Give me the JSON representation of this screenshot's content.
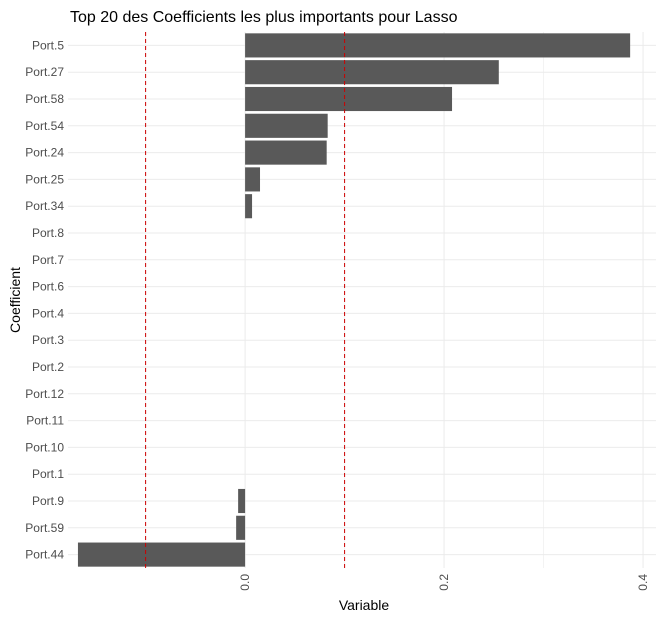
{
  "chart_data": {
    "type": "bar",
    "orientation": "horizontal",
    "title": "Top 20 des Coefficients les plus importants pour Lasso",
    "xlabel": "Variable",
    "ylabel": "Coefficient",
    "categories": [
      "Port.5",
      "Port.27",
      "Port.58",
      "Port.54",
      "Port.24",
      "Port.25",
      "Port.34",
      "Port.8",
      "Port.7",
      "Port.6",
      "Port.4",
      "Port.3",
      "Port.2",
      "Port.12",
      "Port.11",
      "Port.10",
      "Port.1",
      "Port.9",
      "Port.59",
      "Port.44"
    ],
    "values": [
      0.387,
      0.255,
      0.208,
      0.083,
      0.082,
      0.015,
      0.007,
      0,
      0,
      0,
      0,
      0,
      0,
      0,
      0,
      0,
      0,
      -0.007,
      -0.009,
      -0.168
    ],
    "xlim": [
      -0.178,
      0.413
    ],
    "xticks": [
      0.0,
      0.2,
      0.4
    ],
    "xtick_labels": [
      "0.0",
      "0.2",
      "0.4"
    ],
    "reference_lines": [
      -0.1,
      0.1
    ],
    "reference_line_style": "dashed",
    "grid": true,
    "legend": "none",
    "colors": {
      "bar": "#595959",
      "reference_line": "#cc0000",
      "grid": "#ebebeb"
    }
  }
}
